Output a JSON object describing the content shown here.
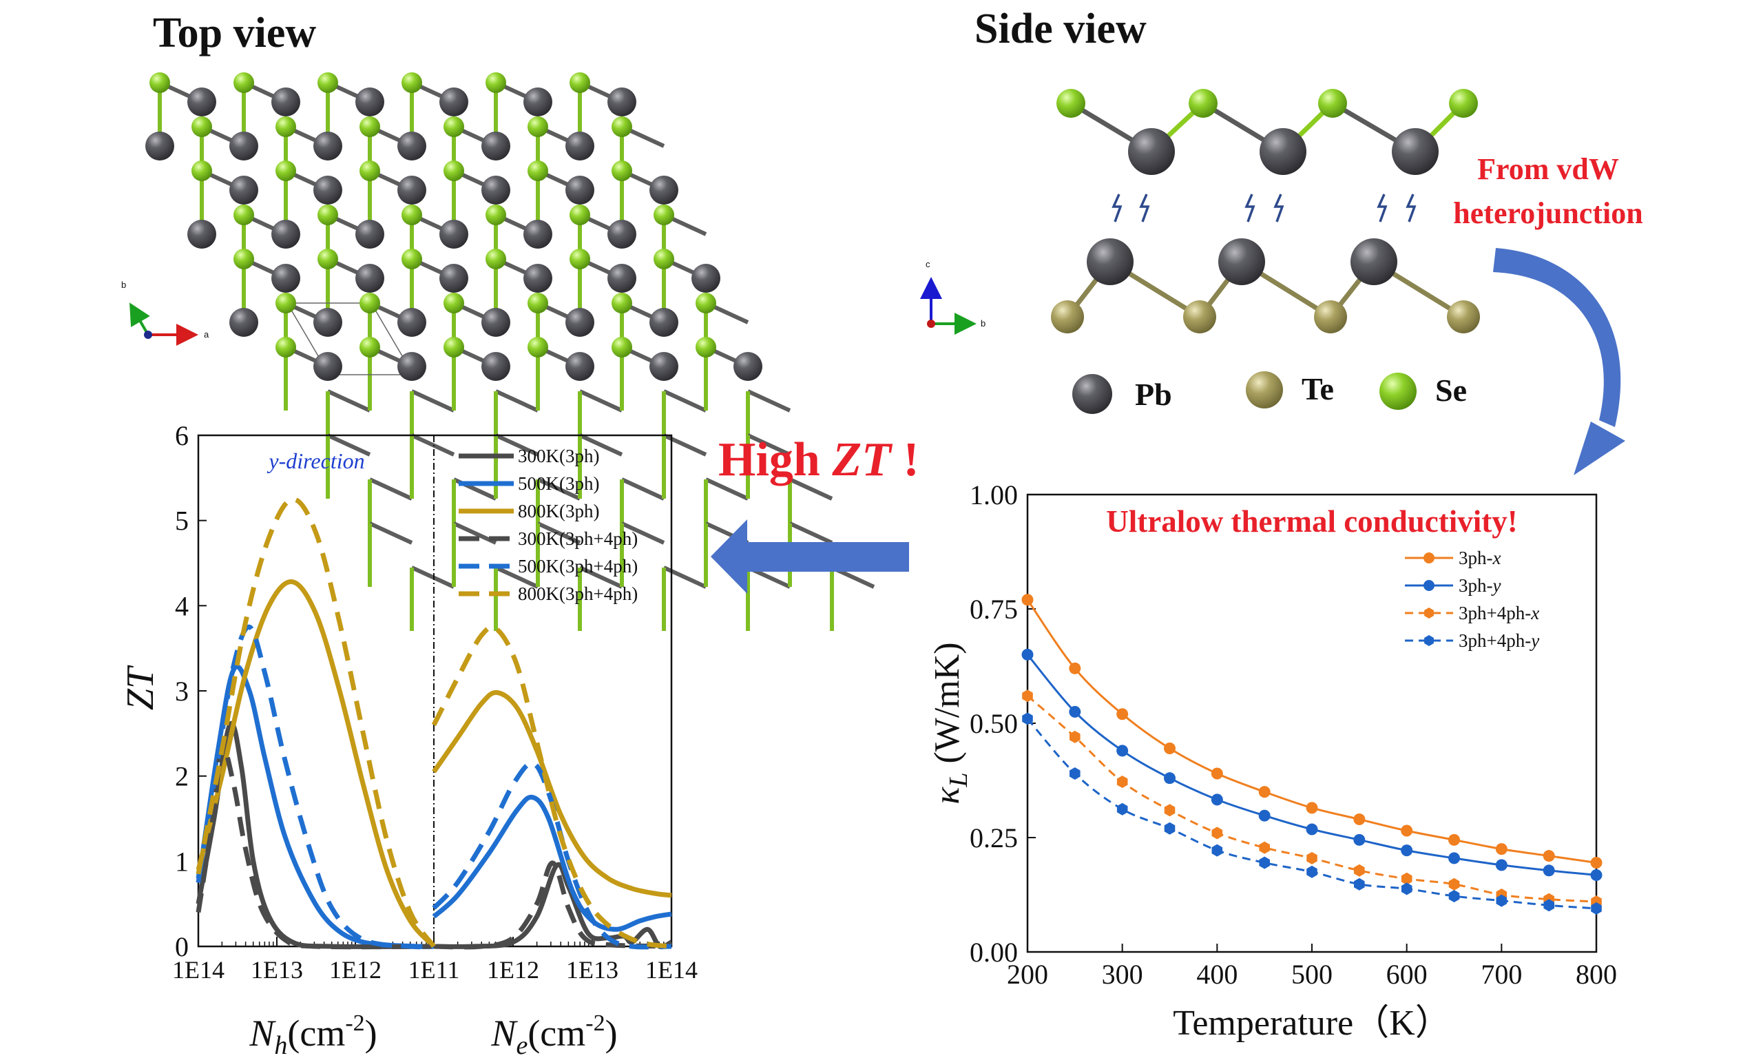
{
  "top_view": {
    "title": "Top view",
    "axis_b": "b",
    "axis_a": "a"
  },
  "side_view": {
    "title": "Side view",
    "axis_c": "c",
    "axis_b": "b"
  },
  "legend_atoms": [
    {
      "label": "Pb",
      "color": "#4b4b50"
    },
    {
      "label": "Te",
      "color": "#a39a5a"
    },
    {
      "label": "Se",
      "color": "#8ccc1e"
    }
  ],
  "annotations": {
    "from_vdw_line1": "From vdW",
    "from_vdw_line2": "heterojunction",
    "high_zt_prefix": "High ",
    "high_zt_italic": "ZT",
    "high_zt_suffix": " !",
    "ultralow": "Ultralow thermal conductivity!",
    "accent_red": "#e8202a",
    "arrow_blue": "#4a72c8"
  },
  "chart_data": [
    {
      "type": "line",
      "title": "",
      "annotation": "y-direction",
      "ylabel": "ZT",
      "ylim": [
        0,
        6
      ],
      "yticks": [
        "0",
        "1",
        "2",
        "3",
        "4",
        "5",
        "6"
      ],
      "xlabel_left_main": "N",
      "xlabel_left_sub": "h",
      "xlabel_right_main": "N",
      "xlabel_right_sub": "e",
      "xlabel_units": "(cm",
      "xlabel_exp": "-2",
      "xlabel_close": ")",
      "xticks": [
        "1E14",
        "1E13",
        "1E12",
        "1E11",
        "1E12",
        "1E13",
        "1E14"
      ],
      "legend": [
        "300K(3ph)",
        "500K(3ph)",
        "800K(3ph)",
        "300K(3ph+4ph)",
        "500K(3ph+4ph)",
        "800K(3ph+4ph)"
      ],
      "series": [
        {
          "name": "300K(3ph)",
          "color": "#4a4a4a",
          "dash": false,
          "hole": [
            [
              14,
              0.5
            ],
            [
              13.8,
              1.5
            ],
            [
              13.6,
              2.6
            ],
            [
              13.45,
              2.1
            ],
            [
              13.3,
              1.0
            ],
            [
              13.1,
              0.35
            ],
            [
              12.8,
              0.05
            ],
            [
              12.3,
              0.0
            ],
            [
              11.0,
              0.0
            ]
          ],
          "electron": [
            [
              11.0,
              0.0
            ],
            [
              11.5,
              0.0
            ],
            [
              12.0,
              0.05
            ],
            [
              12.3,
              0.35
            ],
            [
              12.55,
              0.95
            ],
            [
              12.7,
              0.7
            ],
            [
              12.95,
              0.15
            ],
            [
              13.2,
              0.1
            ],
            [
              13.4,
              0.12
            ],
            [
              13.5,
              0.05
            ],
            [
              13.7,
              0.2
            ],
            [
              13.85,
              0.0
            ],
            [
              14.0,
              0.05
            ]
          ]
        },
        {
          "name": "500K(3ph)",
          "color": "#1f6fd1",
          "dash": false,
          "hole": [
            [
              14,
              0.75
            ],
            [
              13.75,
              2.3
            ],
            [
              13.55,
              3.25
            ],
            [
              13.35,
              3.0
            ],
            [
              13.15,
              2.2
            ],
            [
              12.9,
              1.3
            ],
            [
              12.6,
              0.65
            ],
            [
              12.3,
              0.25
            ],
            [
              11.9,
              0.05
            ],
            [
              11.2,
              0.0
            ],
            [
              11.0,
              0.0
            ]
          ],
          "electron": [
            [
              11.0,
              0.35
            ],
            [
              11.3,
              0.6
            ],
            [
              11.7,
              1.1
            ],
            [
              12.05,
              1.6
            ],
            [
              12.25,
              1.75
            ],
            [
              12.45,
              1.5
            ],
            [
              12.75,
              0.65
            ],
            [
              13.0,
              0.3
            ],
            [
              13.3,
              0.2
            ],
            [
              13.6,
              0.3
            ],
            [
              13.8,
              0.35
            ],
            [
              14.0,
              0.38
            ]
          ]
        },
        {
          "name": "800K(3ph)",
          "color": "#c49a16",
          "dash": false,
          "hole": [
            [
              14,
              0.9
            ],
            [
              13.7,
              2.0
            ],
            [
              13.4,
              3.2
            ],
            [
              13.1,
              4.0
            ],
            [
              12.8,
              4.28
            ],
            [
              12.5,
              3.9
            ],
            [
              12.2,
              3.0
            ],
            [
              11.9,
              1.9
            ],
            [
              11.6,
              0.9
            ],
            [
              11.3,
              0.3
            ],
            [
              11.0,
              0.0
            ]
          ],
          "electron": [
            [
              11.0,
              2.05
            ],
            [
              11.3,
              2.45
            ],
            [
              11.6,
              2.85
            ],
            [
              11.8,
              2.98
            ],
            [
              12.05,
              2.8
            ],
            [
              12.3,
              2.3
            ],
            [
              12.6,
              1.55
            ],
            [
              12.9,
              1.05
            ],
            [
              13.2,
              0.8
            ],
            [
              13.5,
              0.68
            ],
            [
              13.8,
              0.62
            ],
            [
              14.0,
              0.6
            ]
          ]
        },
        {
          "name": "300K(3ph+4ph)",
          "color": "#4a4a4a",
          "dash": true,
          "hole": [
            [
              14,
              0.4
            ],
            [
              13.8,
              1.6
            ],
            [
              13.7,
              2.35
            ],
            [
              13.55,
              1.9
            ],
            [
              13.4,
              1.15
            ],
            [
              13.2,
              0.45
            ],
            [
              12.9,
              0.08
            ],
            [
              12.5,
              0.0
            ],
            [
              11.0,
              0.0
            ]
          ],
          "electron": [
            [
              11.0,
              0.0
            ],
            [
              11.6,
              0.0
            ],
            [
              12.0,
              0.1
            ],
            [
              12.3,
              0.5
            ],
            [
              12.5,
              0.98
            ],
            [
              12.7,
              0.45
            ],
            [
              12.9,
              0.1
            ],
            [
              13.2,
              0.02
            ],
            [
              14.0,
              0.0
            ]
          ]
        },
        {
          "name": "500K(3ph+4ph)",
          "color": "#1f6fd1",
          "dash": true,
          "hole": [
            [
              14,
              0.8
            ],
            [
              13.75,
              2.2
            ],
            [
              13.55,
              3.3
            ],
            [
              13.35,
              3.75
            ],
            [
              13.15,
              3.2
            ],
            [
              12.9,
              2.2
            ],
            [
              12.6,
              1.2
            ],
            [
              12.3,
              0.45
            ],
            [
              11.9,
              0.08
            ],
            [
              11.3,
              0.0
            ],
            [
              11.0,
              0.0
            ]
          ],
          "electron": [
            [
              11.0,
              0.45
            ],
            [
              11.3,
              0.75
            ],
            [
              11.7,
              1.35
            ],
            [
              12.0,
              1.9
            ],
            [
              12.25,
              2.15
            ],
            [
              12.45,
              1.8
            ],
            [
              12.7,
              1.0
            ],
            [
              12.95,
              0.4
            ],
            [
              13.2,
              0.1
            ],
            [
              13.5,
              0.0
            ],
            [
              14.0,
              0.0
            ]
          ]
        },
        {
          "name": "800K(3ph+4ph)",
          "color": "#c49a16",
          "dash": true,
          "hole": [
            [
              14,
              0.85
            ],
            [
              13.7,
              2.3
            ],
            [
              13.4,
              3.8
            ],
            [
              13.1,
              4.8
            ],
            [
              12.8,
              5.25
            ],
            [
              12.5,
              4.85
            ],
            [
              12.2,
              3.8
            ],
            [
              11.9,
              2.5
            ],
            [
              11.6,
              1.25
            ],
            [
              11.3,
              0.4
            ],
            [
              11.0,
              0.0
            ]
          ],
          "electron": [
            [
              11.0,
              2.6
            ],
            [
              11.3,
              3.15
            ],
            [
              11.6,
              3.65
            ],
            [
              11.8,
              3.72
            ],
            [
              12.05,
              3.3
            ],
            [
              12.3,
              2.4
            ],
            [
              12.6,
              1.3
            ],
            [
              12.9,
              0.6
            ],
            [
              13.2,
              0.25
            ],
            [
              13.6,
              0.05
            ],
            [
              14.0,
              0.0
            ]
          ]
        }
      ]
    },
    {
      "type": "line",
      "title": "",
      "xlabel": "Temperature（K）",
      "ylabel_main": "κ",
      "ylabel_sub": "L",
      "ylabel_units": " (W/mK)",
      "xlim": [
        200,
        800
      ],
      "ylim": [
        0,
        1
      ],
      "xticks": [
        "200",
        "300",
        "400",
        "500",
        "600",
        "700",
        "800"
      ],
      "yticks": [
        "0.00",
        "0.25",
        "0.50",
        "0.75",
        "1.00"
      ],
      "x": [
        200,
        250,
        300,
        350,
        400,
        450,
        500,
        550,
        600,
        650,
        700,
        750,
        800
      ],
      "series": [
        {
          "name_main": "3ph-",
          "name_ital": "x",
          "color": "#f07f1f",
          "dash": false,
          "values": [
            0.77,
            0.62,
            0.52,
            0.445,
            0.39,
            0.35,
            0.315,
            0.29,
            0.265,
            0.245,
            0.225,
            0.21,
            0.195
          ]
        },
        {
          "name_main": "3ph-",
          "name_ital": "y",
          "color": "#1e64c8",
          "dash": false,
          "values": [
            0.65,
            0.525,
            0.44,
            0.38,
            0.333,
            0.298,
            0.268,
            0.245,
            0.222,
            0.205,
            0.19,
            0.178,
            0.168
          ]
        },
        {
          "name_main": "3ph+4ph-",
          "name_ital": "x",
          "color": "#f07f1f",
          "dash": true,
          "values": [
            0.56,
            0.47,
            0.372,
            0.31,
            0.26,
            0.228,
            0.205,
            0.178,
            0.16,
            0.148,
            0.125,
            0.115,
            0.11
          ]
        },
        {
          "name_main": "3ph+4ph-",
          "name_ital": "y",
          "color": "#1e64c8",
          "dash": true,
          "values": [
            0.51,
            0.39,
            0.312,
            0.27,
            0.222,
            0.195,
            0.175,
            0.148,
            0.138,
            0.122,
            0.112,
            0.102,
            0.095
          ]
        }
      ]
    }
  ]
}
